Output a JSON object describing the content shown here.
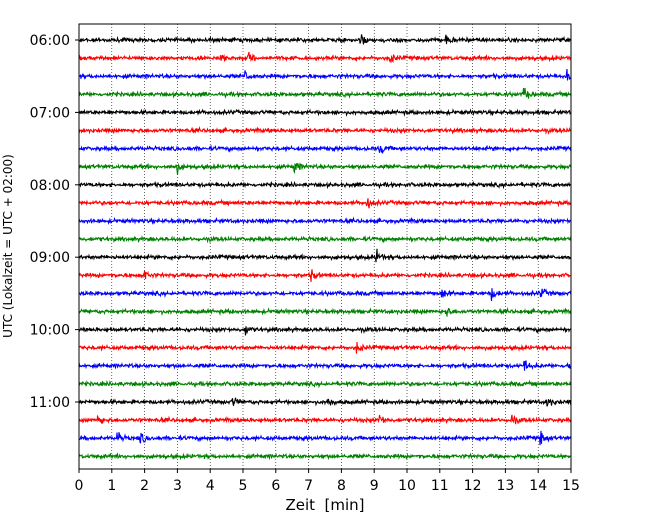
{
  "chart_data": {
    "type": "line",
    "title": "",
    "xlabel": "Zeit  [min]",
    "ylabel": "UTC (Lokalzeit = UTC + 02:00)",
    "xlim": [
      0,
      15
    ],
    "x_ticks": [
      "0",
      "1",
      "2",
      "3",
      "4",
      "5",
      "6",
      "7",
      "8",
      "9",
      "10",
      "11",
      "12",
      "13",
      "14",
      "15"
    ],
    "y_ticks": [
      "06:00",
      "07:00",
      "08:00",
      "09:00",
      "10:00",
      "11:00"
    ],
    "x_grid": "dotted vertical lines at each minute",
    "traces_per_hour": 4,
    "minutes_per_trace": 15,
    "trace_count": 24,
    "trace_colors": [
      "#000000",
      "#ff0000",
      "#0000ff",
      "#008000"
    ],
    "series": [
      {
        "start_utc": "06:00",
        "color": "#000000",
        "events_min": [
          8.6,
          11.2
        ]
      },
      {
        "start_utc": "06:15",
        "color": "#ff0000",
        "events_min": [
          4.3,
          5.2,
          9.5
        ]
      },
      {
        "start_utc": "06:30",
        "color": "#0000ff",
        "events_min": [
          5.1,
          14.9
        ]
      },
      {
        "start_utc": "06:45",
        "color": "#008000",
        "events_min": [
          13.6
        ]
      },
      {
        "start_utc": "07:00",
        "color": "#000000",
        "events_min": []
      },
      {
        "start_utc": "07:15",
        "color": "#ff0000",
        "events_min": []
      },
      {
        "start_utc": "07:30",
        "color": "#0000ff",
        "events_min": [
          9.2
        ]
      },
      {
        "start_utc": "07:45",
        "color": "#008000",
        "events_min": [
          3.0,
          6.6
        ]
      },
      {
        "start_utc": "08:00",
        "color": "#000000",
        "events_min": []
      },
      {
        "start_utc": "08:15",
        "color": "#ff0000",
        "events_min": [
          8.8
        ]
      },
      {
        "start_utc": "08:30",
        "color": "#0000ff",
        "events_min": []
      },
      {
        "start_utc": "08:45",
        "color": "#008000",
        "events_min": []
      },
      {
        "start_utc": "09:00",
        "color": "#000000",
        "events_min": [
          9.1
        ]
      },
      {
        "start_utc": "09:15",
        "color": "#ff0000",
        "events_min": [
          2.0,
          7.1
        ]
      },
      {
        "start_utc": "09:30",
        "color": "#0000ff",
        "events_min": [
          11.1,
          12.6,
          14.1
        ]
      },
      {
        "start_utc": "09:45",
        "color": "#008000",
        "events_min": [
          11.2
        ]
      },
      {
        "start_utc": "10:00",
        "color": "#000000",
        "events_min": [
          5.1
        ]
      },
      {
        "start_utc": "10:15",
        "color": "#ff0000",
        "events_min": [
          8.5
        ]
      },
      {
        "start_utc": "10:30",
        "color": "#0000ff",
        "events_min": [
          13.6,
          14.9
        ]
      },
      {
        "start_utc": "10:45",
        "color": "#008000",
        "events_min": []
      },
      {
        "start_utc": "11:00",
        "color": "#000000",
        "events_min": [
          4.7,
          7.6,
          14.3
        ]
      },
      {
        "start_utc": "11:15",
        "color": "#ff0000",
        "events_min": [
          0.6,
          9.2,
          13.2
        ]
      },
      {
        "start_utc": "11:30",
        "color": "#0000ff",
        "events_min": [
          1.2,
          1.9,
          14.1
        ]
      },
      {
        "start_utc": "11:45",
        "color": "#008000",
        "events_min": []
      }
    ]
  }
}
